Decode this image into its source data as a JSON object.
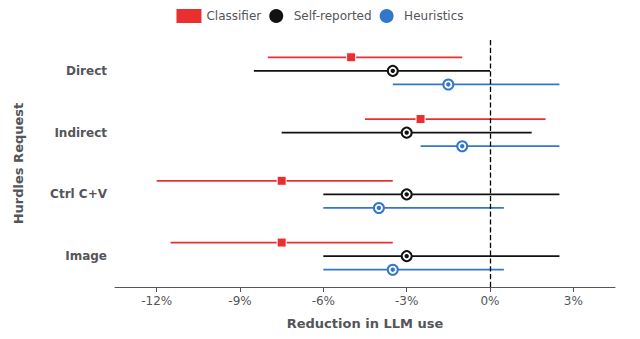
{
  "chart_data": {
    "type": "errorbar",
    "orientation": "horizontal",
    "categories": [
      "Direct",
      "Indirect",
      "Ctrl C+V",
      "Image"
    ],
    "series": [
      {
        "name": "Classifier",
        "color": "#e83030",
        "marker": "square",
        "values": [
          -5.0,
          -2.5,
          -7.5,
          -7.5
        ],
        "lo": [
          -8.0,
          -4.5,
          -12.0,
          -11.5
        ],
        "hi": [
          -1.0,
          2.0,
          -3.5,
          -3.5
        ]
      },
      {
        "name": "Self-reported",
        "color": "#111111",
        "marker": "circle",
        "values": [
          -3.5,
          -3.0,
          -3.0,
          -3.0
        ],
        "lo": [
          -8.5,
          -7.5,
          -6.0,
          -6.0
        ],
        "hi": [
          0.0,
          1.5,
          2.5,
          2.5
        ]
      },
      {
        "name": "Heuristics",
        "color": "#3377cc",
        "marker": "circle",
        "values": [
          -1.5,
          -1.0,
          -4.0,
          -3.5
        ],
        "lo": [
          -3.5,
          -2.5,
          -6.0,
          -6.0
        ],
        "hi": [
          2.5,
          2.5,
          0.5,
          0.5
        ]
      }
    ],
    "xlim": [
      -13.5,
      4.5
    ],
    "xticks": [
      {
        "value": -12,
        "label": "-12%"
      },
      {
        "value": -9,
        "label": "-9%"
      },
      {
        "value": -6,
        "label": "-6%"
      },
      {
        "value": -3,
        "label": "-3%"
      },
      {
        "value": 0,
        "label": "0%"
      },
      {
        "value": 3,
        "label": "3%"
      }
    ],
    "xlabel": "Reduction in LLM use",
    "ylabel": "Hurdles Request",
    "reference_lines": [
      {
        "x": 0,
        "line_style": "dashed"
      }
    ],
    "legend": "top",
    "grid": false
  }
}
